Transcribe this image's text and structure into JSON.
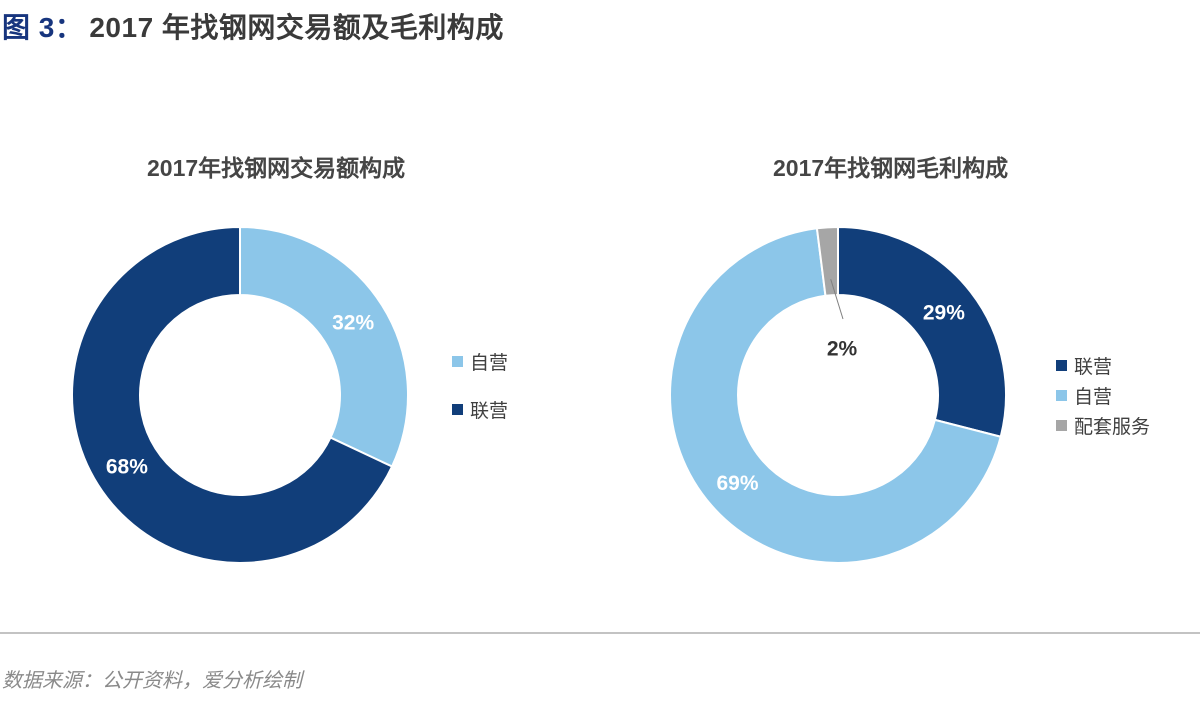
{
  "page": {
    "figure_label": "图 3：",
    "figure_title": "2017 年找钢网交易额及毛利构成",
    "source_note": "数据来源：公开资料，爱分析绘制"
  },
  "colors": {
    "dark_blue": "#113E7A",
    "light_blue": "#8CC6E9",
    "gray": "#A6A6A6",
    "header_label_blue": "#17357E",
    "divider_gray": "#C3C3C3",
    "leader_line_gray": "#808080"
  },
  "chart_data": [
    {
      "type": "pie",
      "subtype": "donut",
      "title": "2017年找钢网交易额构成",
      "start_angle_deg": 0,
      "direction": "clockwise",
      "slices": [
        {
          "name": "自营",
          "value": 32,
          "label": "32%",
          "color": "#8CC6E9",
          "label_color": "#FFFFFF"
        },
        {
          "name": "联营",
          "value": 68,
          "label": "68%",
          "color": "#113E7A",
          "label_color": "#FFFFFF"
        }
      ],
      "legend": [
        {
          "label": "自营",
          "color": "#8CC6E9"
        },
        {
          "label": "联营",
          "color": "#113E7A"
        }
      ],
      "legend_position": "right"
    },
    {
      "type": "pie",
      "subtype": "donut",
      "title": "2017年找钢网毛利构成",
      "start_angle_deg": 0,
      "direction": "clockwise",
      "slices": [
        {
          "name": "联营",
          "value": 29,
          "label": "29%",
          "color": "#113E7A",
          "label_color": "#FFFFFF"
        },
        {
          "name": "自营",
          "value": 69,
          "label": "69%",
          "color": "#8CC6E9",
          "label_color": "#FFFFFF"
        },
        {
          "name": "配套服务",
          "value": 2,
          "label": "2%",
          "color": "#A6A6A6",
          "label_color": "#333333",
          "label_in_hole": true
        }
      ],
      "legend": [
        {
          "label": "联营",
          "color": "#113E7A"
        },
        {
          "label": "自营",
          "color": "#8CC6E9"
        },
        {
          "label": "配套服务",
          "color": "#A6A6A6"
        }
      ],
      "legend_position": "right"
    }
  ]
}
